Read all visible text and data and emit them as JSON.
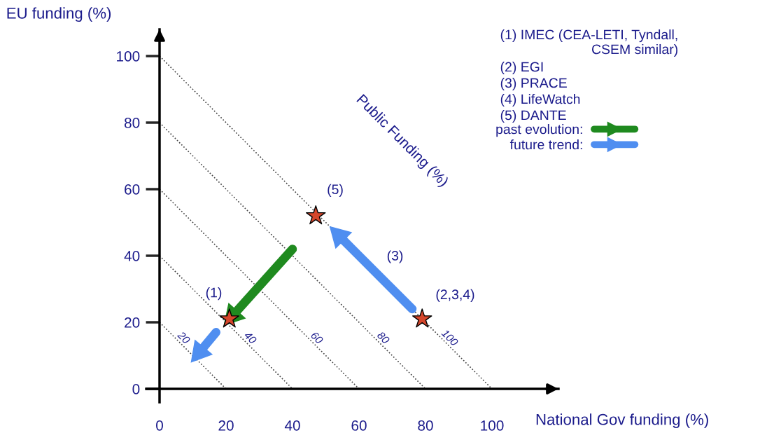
{
  "chart_data": {
    "type": "scatter",
    "xlabel": "National Gov funding (%)",
    "ylabel": "EU funding (%)",
    "xlim": [
      -4,
      120
    ],
    "ylim": [
      -4,
      108
    ],
    "xticks": [
      0,
      20,
      40,
      60,
      80,
      100
    ],
    "yticks": [
      0,
      20,
      40,
      60,
      80,
      100
    ],
    "grid": false,
    "legend": "top right",
    "series": [
      {
        "marker": "star",
        "color": "#d5462b",
        "x": [
          21,
          47,
          79
        ],
        "values": [
          21,
          52,
          21
        ]
      },
      {
        "type": "line",
        "line_style": "dotted",
        "marker": "none",
        "color": "#444444",
        "name": "20",
        "x": [
          0,
          20
        ],
        "values": [
          20,
          0
        ]
      },
      {
        "type": "line",
        "line_style": "dotted",
        "marker": "none",
        "color": "#444444",
        "name": "40",
        "x": [
          0,
          40
        ],
        "values": [
          40,
          0
        ]
      },
      {
        "type": "line",
        "line_style": "dotted",
        "marker": "none",
        "color": "#444444",
        "name": "60",
        "x": [
          0,
          60
        ],
        "values": [
          60,
          0
        ]
      },
      {
        "type": "line",
        "line_style": "dotted",
        "marker": "none",
        "color": "#444444",
        "name": "80",
        "x": [
          0,
          80
        ],
        "values": [
          80,
          0
        ]
      },
      {
        "type": "line",
        "line_style": "dotted",
        "marker": "none",
        "color": "#444444",
        "name": "100",
        "x": [
          0,
          100
        ],
        "values": [
          100,
          0
        ]
      },
      {
        "type": "line",
        "line_style": "solid",
        "marker": "triangle",
        "color": "#1f8a1f",
        "name": "past evolution:",
        "x": [
          40,
          22
        ],
        "values": [
          42,
          22
        ]
      },
      {
        "type": "line",
        "line_style": "solid",
        "marker": "triangle",
        "color": "#4f8ef0",
        "name": "future trend:",
        "x": [
          76,
          54
        ],
        "values": [
          24,
          46
        ]
      },
      {
        "type": "line",
        "line_style": "solid",
        "marker": "triangle",
        "color": "#4f8ef0",
        "x": [
          17,
          12
        ],
        "values": [
          17,
          11
        ]
      }
    ],
    "annotations": [
      {
        "text": "(1)",
        "x": 21,
        "y": 21
      },
      {
        "text": "(5)",
        "x": 47,
        "y": 52
      },
      {
        "text": "(2,3,4)",
        "x": 79,
        "y": 21
      },
      {
        "text": "(3)",
        "x": 65,
        "y": 35
      },
      "Public Funding (%)",
      "(1) IMEC (CEA-LETI, Tyndall,\nCSEM similar)",
      "(2) EGI",
      "(3) PRACE",
      "(4) LifeWatch",
      "(5) DANTE"
    ]
  }
}
